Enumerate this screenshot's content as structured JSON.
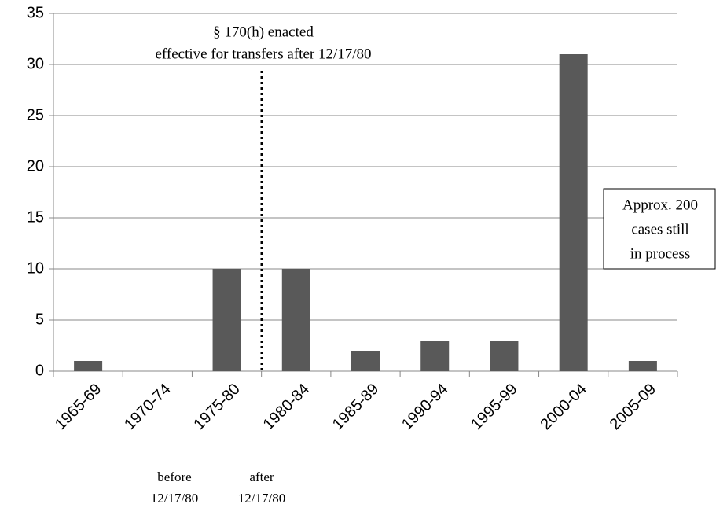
{
  "chart_data": {
    "type": "bar",
    "categories": [
      "1965-69",
      "1970-74",
      "1975-80",
      "1980-84",
      "1985-89",
      "1990-94",
      "1995-99",
      "2000-04",
      "2005-09"
    ],
    "values": [
      1,
      0,
      10,
      10,
      2,
      3,
      3,
      31,
      1
    ],
    "color": "#595959",
    "ylim": [
      0,
      35
    ],
    "yticks": [
      0,
      5,
      10,
      15,
      20,
      25,
      30,
      35
    ],
    "grid": true,
    "annotations": {
      "enacted": [
        "§ 170(h)  enacted",
        "effective for transfers after 12/17/80"
      ],
      "box": [
        "Approx. 200",
        "cases still",
        "in process"
      ],
      "before": [
        "before",
        "12/17/80"
      ],
      "after": [
        "after",
        "12/17/80"
      ]
    }
  }
}
